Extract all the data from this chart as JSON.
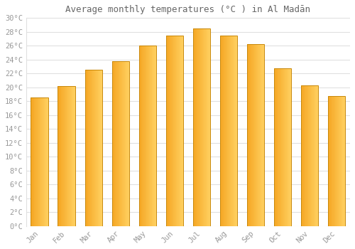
{
  "title": "Average monthly temperatures (°C ) in Al Madān",
  "months": [
    "Jan",
    "Feb",
    "Mar",
    "Apr",
    "May",
    "Jun",
    "Jul",
    "Aug",
    "Sep",
    "Oct",
    "Nov",
    "Dec"
  ],
  "values": [
    18.5,
    20.2,
    22.5,
    23.8,
    26.0,
    27.5,
    28.5,
    27.5,
    26.2,
    22.7,
    20.3,
    18.7
  ],
  "bar_color_left": "#F5A623",
  "bar_color_right": "#FFD060",
  "bar_edge_color": "#C8880A",
  "background_color": "#FFFFFF",
  "grid_color": "#E0E0E0",
  "ylim": [
    0,
    30
  ],
  "ytick_step": 2,
  "title_fontsize": 9,
  "tick_fontsize": 7.5,
  "tick_color": "#999999",
  "bar_width": 0.65,
  "font_family": "monospace"
}
